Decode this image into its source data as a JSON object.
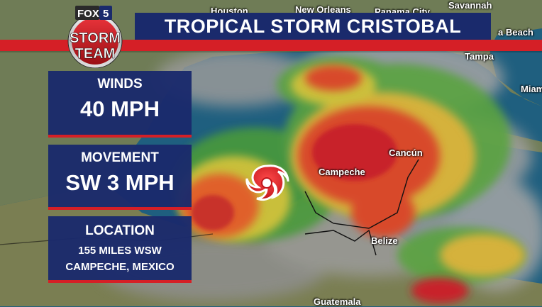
{
  "title": "TROPICAL STORM CRISTOBAL",
  "logo": {
    "fox": "FOX",
    "channel": "5",
    "line1": "STORM",
    "line2": "TEAM"
  },
  "panels": {
    "winds": {
      "label": "WINDS",
      "value": "40 MPH"
    },
    "movement": {
      "label": "MOVEMENT",
      "value": "SW 3 MPH"
    },
    "location": {
      "label": "LOCATION",
      "line1": "155 MILES WSW",
      "line2": "CAMPECHE, MEXICO"
    }
  },
  "cities": {
    "houston": "Houston",
    "new_orleans": "New Orleans",
    "panama_city": "Panama City",
    "savannah": "Savannah",
    "beach": "a Beach",
    "tampa": "Tampa",
    "miami": "Miam",
    "cancun": "Cancún",
    "campeche": "Campeche",
    "belize": "Belize",
    "guatemala": "Guatemala"
  },
  "colors": {
    "navy": "#1a2a6c",
    "red": "#d51f26",
    "land": "#6f7c56",
    "ocean": "#1f5f7f"
  },
  "icons": [
    "hurricane-icon"
  ]
}
